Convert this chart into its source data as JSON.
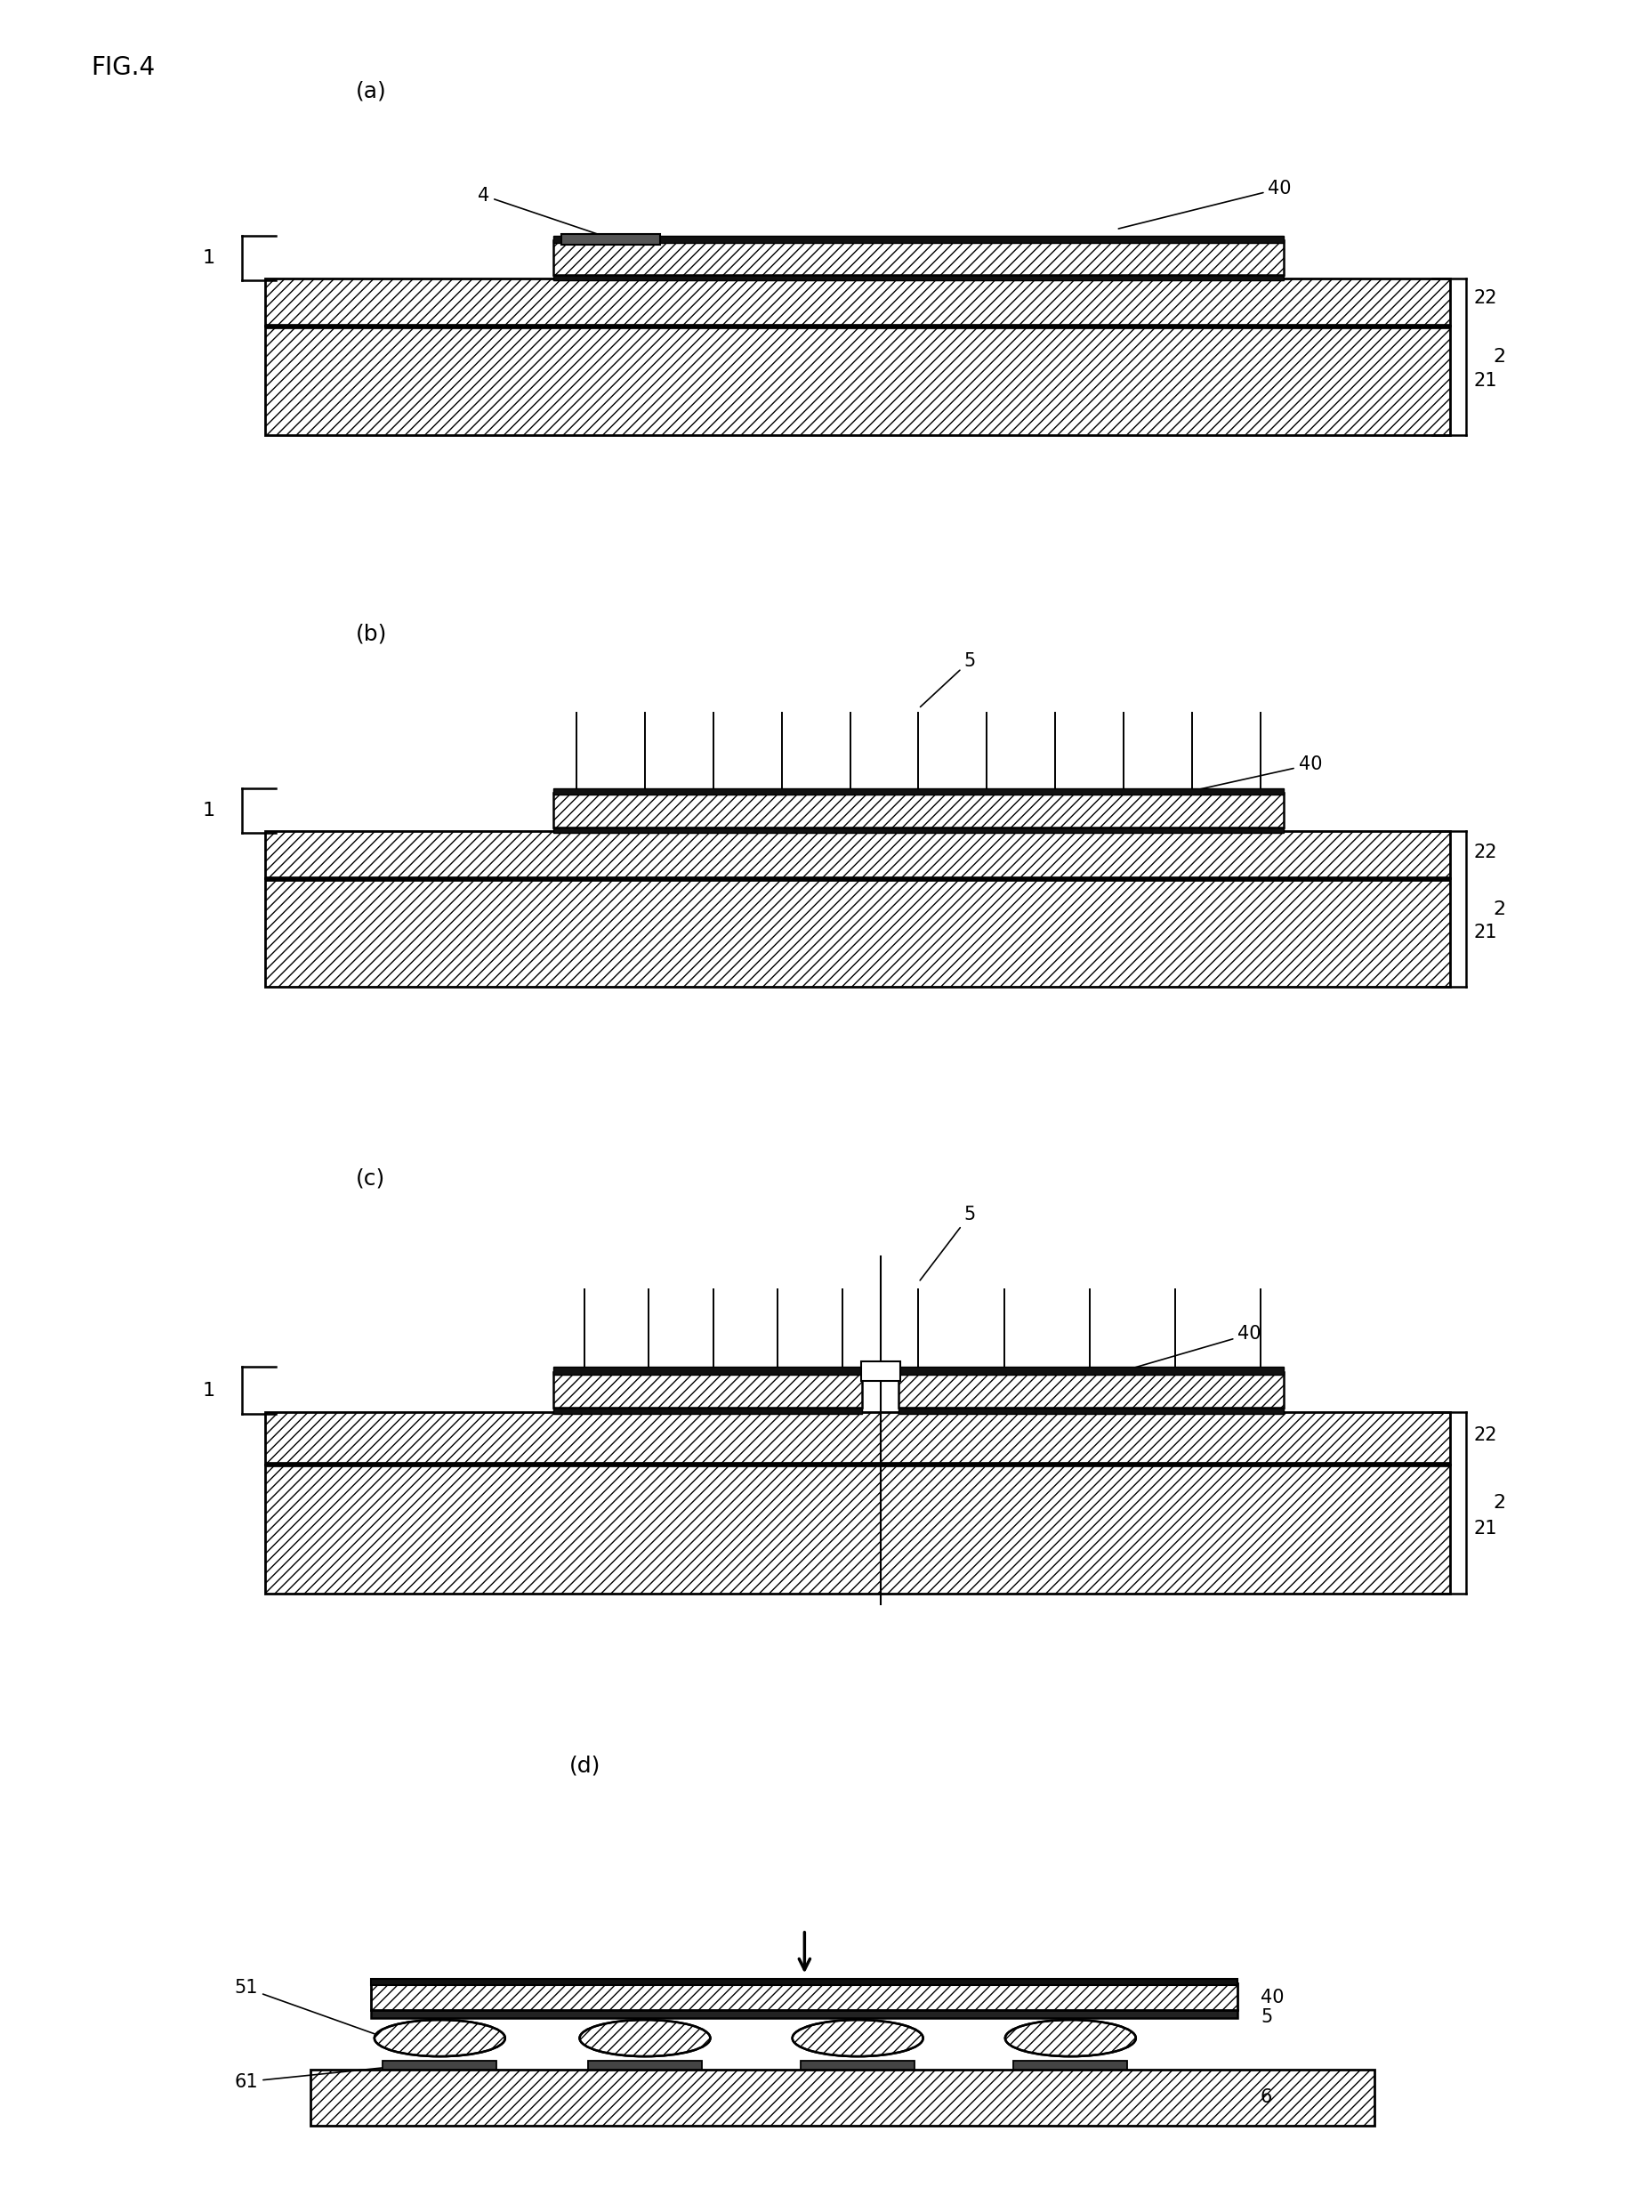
{
  "fig_title": "FIG.4",
  "background": "#ffffff",
  "panels": [
    "(a)",
    "(b)",
    "(c)",
    "(d)"
  ],
  "colors": {
    "hatch_light": "#ffffff",
    "outline": "#000000",
    "hatch_dark": "#444444",
    "dark_layer": "#222222",
    "mid_gray": "#888888"
  }
}
